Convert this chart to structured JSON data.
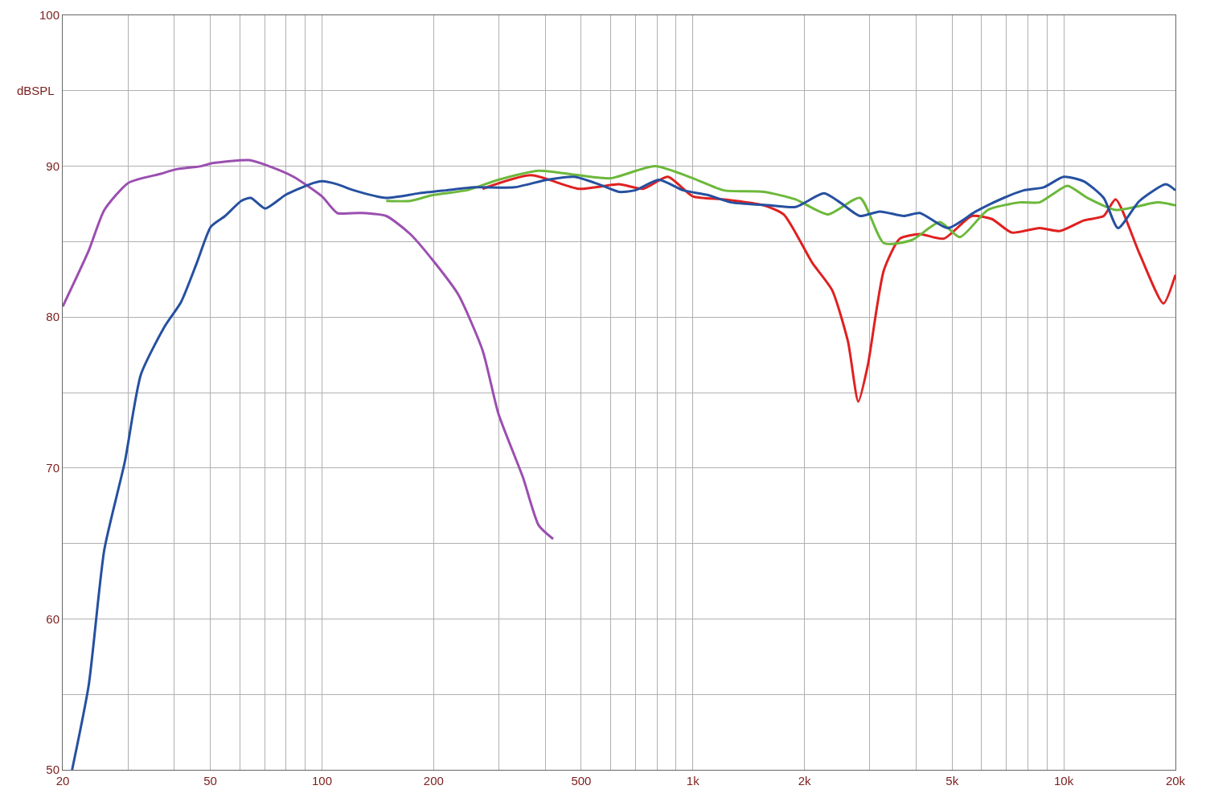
{
  "chart_data": {
    "type": "line",
    "ylabel": "dBSPL",
    "log": "x",
    "grid": true,
    "marker": "none",
    "line_style": "solid",
    "xlim": [
      20,
      20000
    ],
    "ylim": [
      50,
      100
    ],
    "xticks": [
      20,
      {
        "value": 30,
        "label": null
      },
      {
        "value": 40,
        "label": null
      },
      50,
      {
        "value": 60,
        "label": null
      },
      {
        "value": 70,
        "label": null
      },
      {
        "value": 80,
        "label": null
      },
      {
        "value": 90,
        "label": null
      },
      100,
      200,
      {
        "value": 300,
        "label": null
      },
      {
        "value": 400,
        "label": null
      },
      500,
      {
        "value": 600,
        "label": null
      },
      {
        "value": 700,
        "label": null
      },
      {
        "value": 800,
        "label": null
      },
      {
        "value": 900,
        "label": null
      },
      {
        "value": 1000,
        "label": "1k"
      },
      {
        "value": 2000,
        "label": "2k"
      },
      {
        "value": 3000,
        "label": null
      },
      {
        "value": 4000,
        "label": null
      },
      {
        "value": 5000,
        "label": "5k"
      },
      {
        "value": 6000,
        "label": null
      },
      {
        "value": 7000,
        "label": null
      },
      {
        "value": 8000,
        "label": null
      },
      {
        "value": 9000,
        "label": null
      },
      {
        "value": 10000,
        "label": "10k"
      },
      {
        "value": 20000,
        "label": "20k"
      }
    ],
    "yticks": [
      50,
      {
        "value": 55,
        "label": null
      },
      60,
      {
        "value": 65,
        "label": null
      },
      70,
      {
        "value": 75,
        "label": null
      },
      80,
      {
        "value": 85,
        "label": null
      },
      90,
      {
        "value": 95,
        "label": null
      },
      100
    ],
    "series": [
      {
        "color": "#9b4fb0",
        "x": [
          20,
          23.5,
          25.9,
          30.1,
          36.8,
          40.5,
          47.2,
          50.7,
          63.6,
          72,
          83.8,
          100,
          110,
          127,
          149,
          173,
          200,
          233,
          271,
          299,
          348,
          384,
          420
        ],
        "values": [
          80.7,
          84.4,
          87.1,
          88.9,
          89.5,
          89.8,
          90.0,
          90.2,
          90.4,
          90.0,
          89.3,
          88.0,
          86.9,
          86.9,
          86.7,
          85.5,
          83.7,
          81.5,
          77.8,
          73.6,
          69.4,
          66.2,
          65.3
        ]
      },
      {
        "color": "#e02020",
        "x": [
          271,
          366,
          492,
          632,
          734,
          856,
          1000,
          1210,
          1554,
          1758,
          2098,
          2372,
          2618,
          2792,
          2962,
          3272,
          3614,
          4092,
          4748,
          5648,
          6396,
          7240,
          8600,
          9752,
          11314,
          12808,
          13800,
          16000,
          18560,
          20000
        ],
        "values": [
          88.5,
          89.4,
          88.5,
          88.8,
          88.5,
          89.3,
          88.0,
          87.8,
          87.4,
          86.8,
          83.6,
          81.8,
          78.4,
          74.4,
          76.8,
          83.1,
          85.2,
          85.5,
          85.2,
          86.7,
          86.5,
          85.6,
          85.9,
          85.7,
          86.4,
          86.7,
          87.8,
          84.2,
          80.9,
          82.8
        ]
      },
      {
        "color": "#6cb83a",
        "x": [
          149,
          173,
          200,
          245,
          299,
          384,
          492,
          600,
          790,
          1000,
          1210,
          1554,
          1893,
          2316,
          2822,
          3272,
          3891,
          4632,
          5246,
          6240,
          7600,
          8600,
          9280,
          10230,
          11580,
          13800,
          17940,
          20000
        ],
        "values": [
          87.7,
          87.7,
          88.1,
          88.4,
          89.1,
          89.7,
          89.4,
          89.2,
          90.0,
          89.2,
          88.4,
          88.3,
          87.8,
          86.8,
          87.9,
          84.9,
          85.1,
          86.3,
          85.3,
          87.1,
          87.6,
          87.6,
          88.1,
          88.7,
          87.9,
          87.1,
          87.6,
          87.4
        ]
      },
      {
        "color": "#2650a0",
        "x": [
          21.2,
          23.5,
          25.9,
          29.4,
          32.5,
          37.7,
          41.7,
          46,
          50.2,
          54.8,
          60.6,
          64.3,
          70.3,
          79.8,
          92.7,
          100,
          110,
          122,
          149,
          182,
          216,
          258,
          330,
          404,
          479,
          558,
          632,
          698,
          810,
          942,
          1094,
          1270,
          1630,
          1893,
          2256,
          2492,
          2822,
          3192,
          3704,
          4092,
          4866,
          5790,
          6888,
          7798,
          8828,
          9994,
          11314,
          12808,
          14000,
          16000,
          18840,
          20000
        ],
        "values": [
          50,
          55.6,
          64.6,
          70.4,
          76.2,
          79.4,
          81.0,
          83.6,
          86.0,
          86.7,
          87.7,
          87.9,
          87.2,
          88.1,
          88.8,
          89.0,
          88.8,
          88.4,
          87.9,
          88.2,
          88.4,
          88.6,
          88.6,
          89.1,
          89.3,
          88.8,
          88.3,
          88.4,
          89.1,
          88.4,
          88.1,
          87.6,
          87.4,
          87.3,
          88.2,
          87.6,
          86.7,
          87.0,
          86.7,
          86.9,
          85.9,
          87.0,
          87.9,
          88.4,
          88.6,
          89.3,
          89.0,
          87.9,
          85.9,
          87.7,
          88.8,
          88.4
        ]
      }
    ]
  }
}
